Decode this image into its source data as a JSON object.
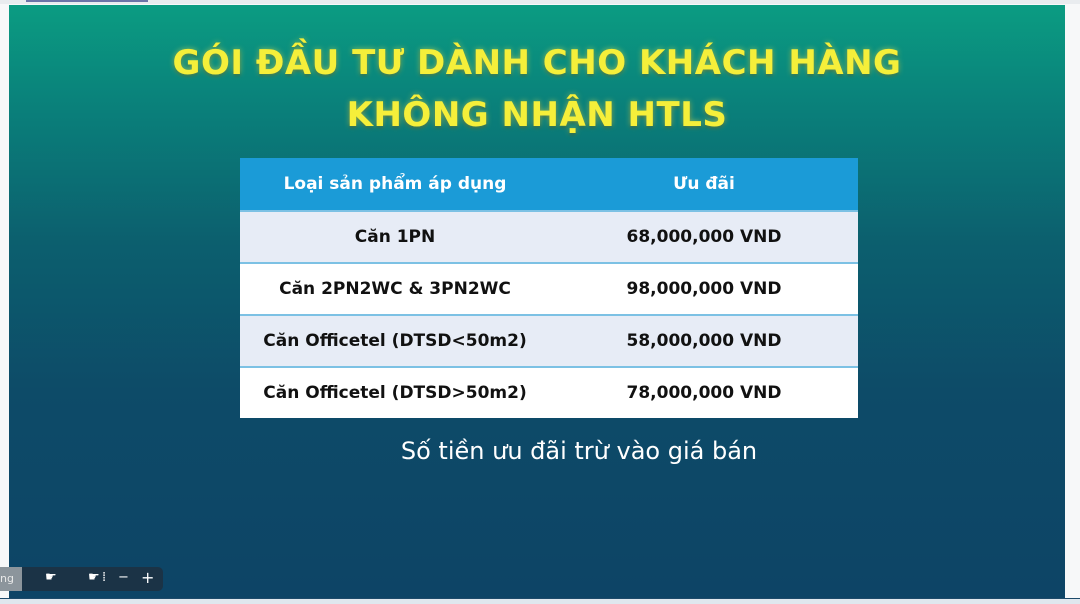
{
  "title_line1": "GÓI ĐẦU TƯ DÀNH CHO KHÁCH HÀNG",
  "title_line2": "KHÔNG NHẬN HTLS",
  "table": {
    "headers": [
      "Loại sản phẩm áp dụng",
      "Ưu đãi"
    ],
    "rows": [
      [
        "Căn 1PN",
        "68,000,000 VND"
      ],
      [
        "Căn 2PN2WC & 3PN2WC",
        "98,000,000 VND"
      ],
      [
        "Căn Officetel (DTSD<50m2)",
        "58,000,000 VND"
      ],
      [
        "Căn Officetel (DTSD>50m2)",
        "78,000,000 VND"
      ]
    ]
  },
  "note": "Số tiền ưu đãi trừ vào giá bán",
  "toolbar": {
    "label": "ng",
    "zoom_out": "−",
    "zoom_in": "+"
  },
  "colors": {
    "title": "#f5ef3a",
    "header": "#1b9bd7",
    "bg_top": "#0b9c82",
    "bg_bottom": "#0d4466"
  }
}
